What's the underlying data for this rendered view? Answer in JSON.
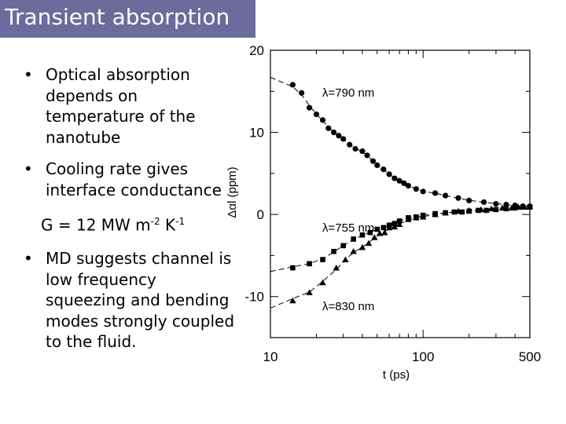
{
  "slide": {
    "title": "Transient absorption",
    "bullet_symbol": "•",
    "bullets": [
      "Optical absorption depends on temperature of the nanotube",
      "Cooling rate gives interface conductance",
      "MD suggests channel is low frequency squeezing and bending modes strongly coupled to the fluid."
    ],
    "formula": {
      "lhs": "G = 12 MW m",
      "exp1": "-2",
      "mid": " K",
      "exp2": "-1"
    }
  },
  "chart_data": {
    "type": "scatter",
    "xscale": "log",
    "xlim": [
      10,
      500
    ],
    "ylim": [
      -15,
      20
    ],
    "xlabel": "t (ps)",
    "ylabel": "Δαl (ppm)",
    "xticks": [
      10,
      100,
      500
    ],
    "yticks": [
      20,
      10,
      0,
      -10
    ],
    "series": [
      {
        "name": "λ=790 nm",
        "marker": "circle",
        "x": [
          14,
          16,
          18,
          20,
          22,
          24,
          26,
          28,
          30,
          33,
          36,
          40,
          43,
          47,
          50,
          55,
          60,
          65,
          70,
          75,
          80,
          90,
          100,
          120,
          140,
          170,
          200,
          250,
          300,
          350,
          400,
          450,
          500
        ],
        "y": [
          15.8,
          14.8,
          13.0,
          12.2,
          11.5,
          10.5,
          10.0,
          9.6,
          9.2,
          8.5,
          8.0,
          7.7,
          7.2,
          6.5,
          6.0,
          5.5,
          4.9,
          4.4,
          4.1,
          3.8,
          3.5,
          3.1,
          2.8,
          2.6,
          2.3,
          2.0,
          1.7,
          1.5,
          1.3,
          1.2,
          1.1,
          1.0,
          1.0
        ]
      },
      {
        "name": "λ=755 nm",
        "marker": "square",
        "x": [
          14,
          18,
          22,
          26,
          30,
          35,
          40,
          45,
          50,
          55,
          60,
          65,
          70,
          80,
          90,
          100,
          120,
          140,
          160,
          180,
          200,
          230,
          260,
          300,
          350,
          400,
          450,
          500
        ],
        "y": [
          -6.5,
          -6.0,
          -5.5,
          -4.5,
          -3.8,
          -3.0,
          -2.5,
          -2.2,
          -1.8,
          -1.6,
          -1.3,
          -1.1,
          -0.8,
          -0.4,
          -0.3,
          -0.1,
          0.1,
          0.2,
          0.3,
          0.3,
          0.4,
          0.5,
          0.5,
          0.6,
          0.7,
          0.8,
          0.9,
          0.9
        ]
      },
      {
        "name": "λ=830 nm",
        "marker": "triangle",
        "x": [
          14,
          18,
          22,
          27,
          31,
          35,
          40,
          44,
          48,
          52,
          56,
          60,
          65,
          70,
          80,
          90,
          100,
          120,
          140,
          170,
          200,
          240,
          280,
          330,
          380,
          420,
          460,
          500
        ],
        "y": [
          -10.5,
          -9.5,
          -8.3,
          -6.5,
          -5.5,
          -4.5,
          -4.0,
          -3.5,
          -2.8,
          -2.3,
          -2.2,
          -1.6,
          -1.5,
          -1.2,
          -0.6,
          -0.4,
          -0.3,
          0.0,
          0.2,
          0.4,
          0.5,
          0.6,
          0.7,
          0.8,
          0.8,
          0.9,
          0.9,
          1.0
        ]
      }
    ]
  }
}
